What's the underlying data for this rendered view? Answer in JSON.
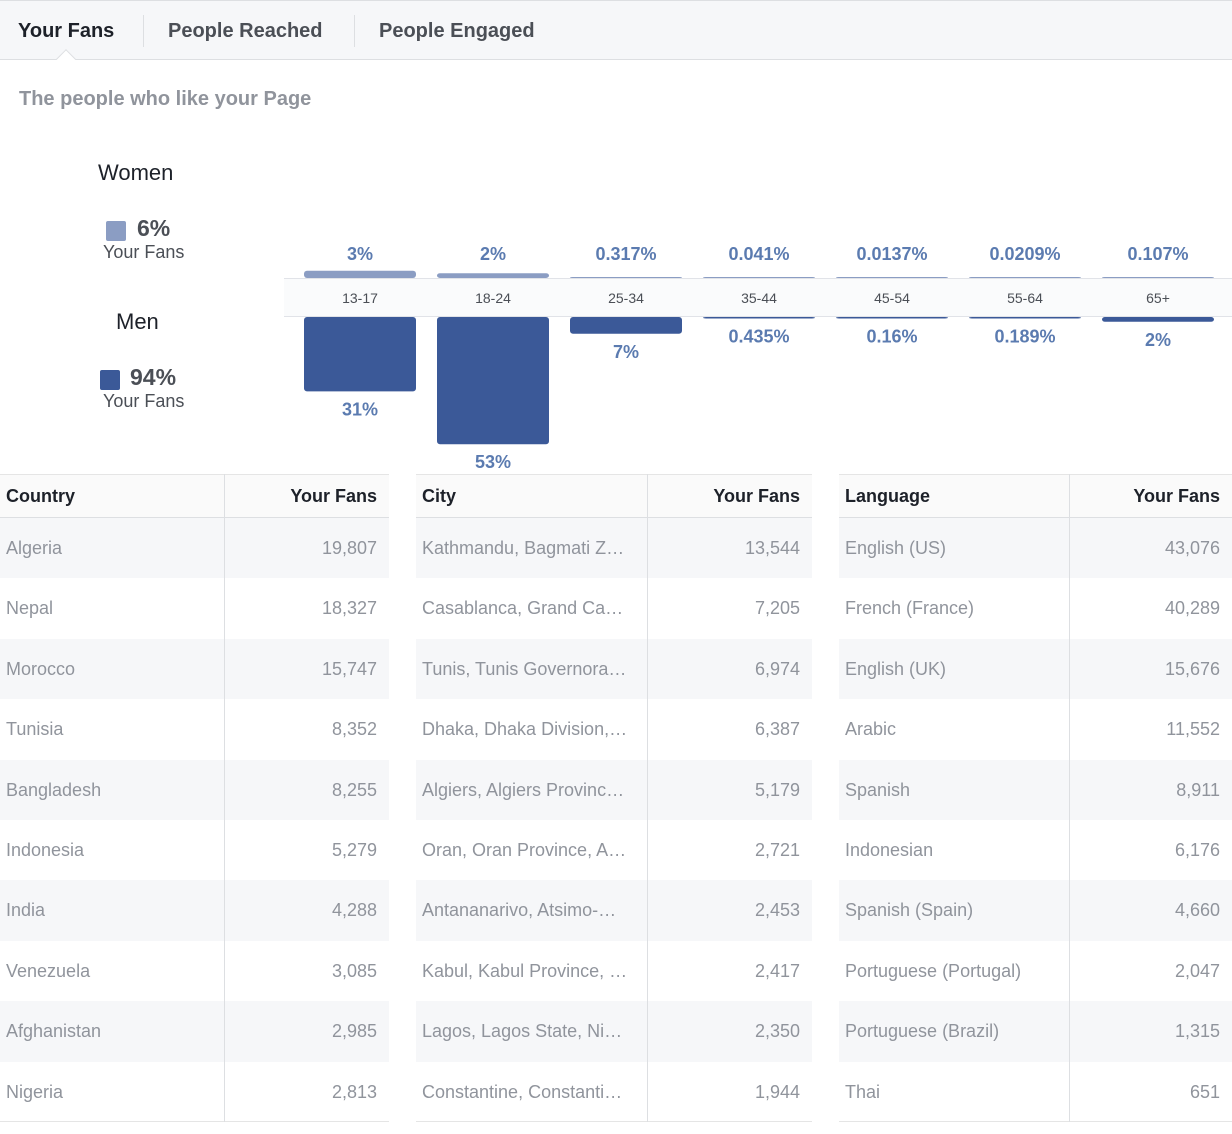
{
  "tabs": [
    {
      "label": "Your Fans",
      "active": true
    },
    {
      "label": "People Reached",
      "active": false
    },
    {
      "label": "People Engaged",
      "active": false
    }
  ],
  "subtitle": "The people who like your Page",
  "gender": {
    "women": {
      "title": "Women",
      "percent": "6%",
      "label": "Your Fans",
      "color": "#8b9dc3"
    },
    "men": {
      "title": "Men",
      "percent": "94%",
      "label": "Your Fans",
      "color": "#3b5998"
    }
  },
  "chart_data": {
    "type": "bar",
    "categories": [
      "13-17",
      "18-24",
      "25-34",
      "35-44",
      "45-54",
      "55-64",
      "65+"
    ],
    "series": [
      {
        "name": "Women",
        "values": [
          3,
          2,
          0.317,
          0.041,
          0.0137,
          0.0209,
          0.107
        ],
        "labels": [
          "3%",
          "2%",
          "0.317%",
          "0.041%",
          "0.0137%",
          "0.0209%",
          "0.107%"
        ],
        "color": "#8b9dc3"
      },
      {
        "name": "Men",
        "values": [
          31,
          53,
          7,
          0.435,
          0.16,
          0.189,
          2
        ],
        "labels": [
          "31%",
          "53%",
          "7%",
          "0.435%",
          "0.16%",
          "0.189%",
          "2%"
        ],
        "color": "#3b5998"
      }
    ]
  },
  "tables": {
    "country": {
      "headers": [
        "Country",
        "Your Fans"
      ],
      "rows": [
        [
          "Algeria",
          "19,807"
        ],
        [
          "Nepal",
          "18,327"
        ],
        [
          "Morocco",
          "15,747"
        ],
        [
          "Tunisia",
          "8,352"
        ],
        [
          "Bangladesh",
          "8,255"
        ],
        [
          "Indonesia",
          "5,279"
        ],
        [
          "India",
          "4,288"
        ],
        [
          "Venezuela",
          "3,085"
        ],
        [
          "Afghanistan",
          "2,985"
        ],
        [
          "Nigeria",
          "2,813"
        ]
      ]
    },
    "city": {
      "headers": [
        "City",
        "Your Fans"
      ],
      "rows": [
        [
          "Kathmandu, Bagmati Z…",
          "13,544"
        ],
        [
          "Casablanca, Grand Ca…",
          "7,205"
        ],
        [
          "Tunis, Tunis Governora…",
          "6,974"
        ],
        [
          "Dhaka, Dhaka Division,…",
          "6,387"
        ],
        [
          "Algiers, Algiers Provinc…",
          "5,179"
        ],
        [
          "Oran, Oran Province, A…",
          "2,721"
        ],
        [
          "Antananarivo, Atsimo-…",
          "2,453"
        ],
        [
          "Kabul, Kabul Province, …",
          "2,417"
        ],
        [
          "Lagos, Lagos State, Ni…",
          "2,350"
        ],
        [
          "Constantine, Constanti…",
          "1,944"
        ]
      ]
    },
    "language": {
      "headers": [
        "Language",
        "Your Fans"
      ],
      "rows": [
        [
          "English (US)",
          "43,076"
        ],
        [
          "French (France)",
          "40,289"
        ],
        [
          "English (UK)",
          "15,676"
        ],
        [
          "Arabic",
          "11,552"
        ],
        [
          "Spanish",
          "8,911"
        ],
        [
          "Indonesian",
          "6,176"
        ],
        [
          "Spanish (Spain)",
          "4,660"
        ],
        [
          "Portuguese (Portugal)",
          "2,047"
        ],
        [
          "Portuguese (Brazil)",
          "1,315"
        ],
        [
          "Thai",
          "651"
        ]
      ]
    }
  }
}
